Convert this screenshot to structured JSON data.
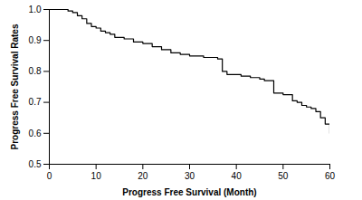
{
  "chart_data": {
    "type": "line",
    "line_style": "step",
    "color": "#000000",
    "x_label": "Progress Free Survival (Month)",
    "y_label": "Progress Free Survival Rates",
    "x": [
      0,
      4,
      5,
      6,
      7,
      8,
      9,
      10,
      11,
      12,
      13,
      14,
      16,
      18,
      20,
      22,
      24,
      26,
      28,
      30,
      33,
      36,
      37,
      38,
      41,
      43,
      45,
      46,
      48,
      50,
      52,
      53,
      54,
      55,
      56,
      57,
      58,
      59,
      60
    ],
    "values": [
      1,
      0.995,
      0.99,
      0.98,
      0.97,
      0.955,
      0.945,
      0.94,
      0.93,
      0.925,
      0.92,
      0.91,
      0.905,
      0.895,
      0.89,
      0.88,
      0.87,
      0.86,
      0.855,
      0.85,
      0.845,
      0.84,
      0.8,
      0.79,
      0.785,
      0.78,
      0.775,
      0.77,
      0.73,
      0.725,
      0.705,
      0.7,
      0.69,
      0.685,
      0.68,
      0.67,
      0.65,
      0.63,
      0.6
    ],
    "xlim": [
      0,
      60
    ],
    "xticks": [
      0,
      10,
      20,
      30,
      40,
      50,
      60
    ],
    "ylim": [
      0.5,
      1
    ],
    "yticks": [
      0.5,
      0.6,
      0.7,
      0.8,
      0.9,
      {
        "value": 1,
        "label": "1.0"
      }
    ],
    "grid": false
  }
}
